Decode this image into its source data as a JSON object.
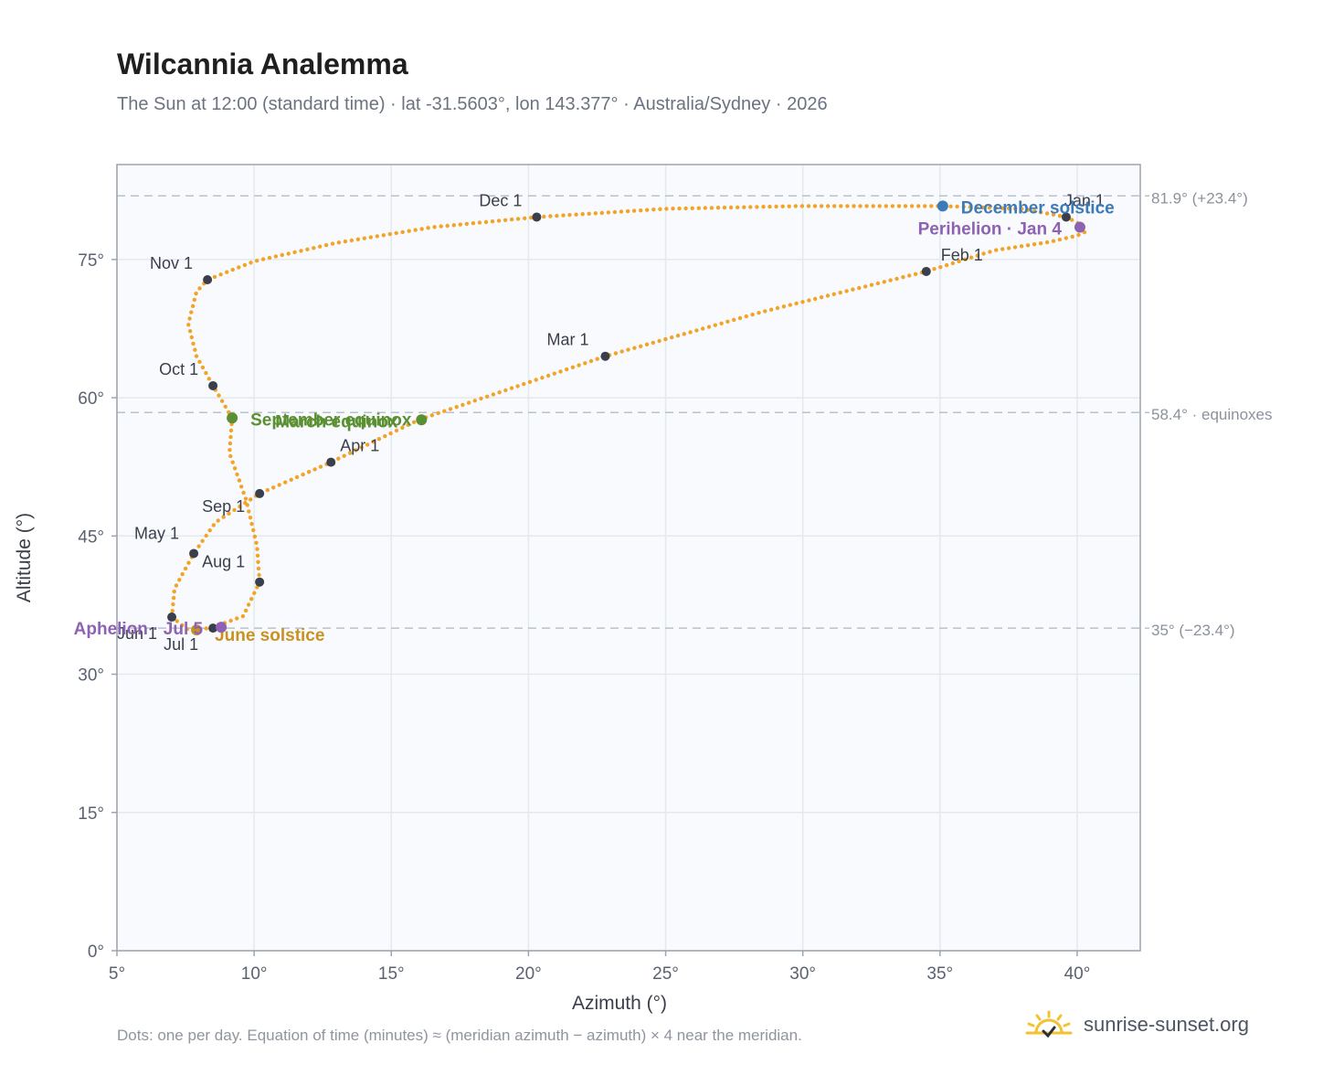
{
  "header": {
    "title": "Wilcannia Analemma",
    "subtitle": "The Sun at 12:00 (standard time) · lat -31.5603°, lon 143.377° · Australia/Sydney · 2026"
  },
  "footer": {
    "note": "Dots: one per day. Equation of time (minutes) ≈ (meridian azimuth − azimuth) × 4 near the meridian.",
    "brand": "sunrise-sunset.org"
  },
  "colors": {
    "path": "#f2a427",
    "month": "#3a3f4b",
    "equinox": "#5b9032",
    "december": "#3d7ab8",
    "june": "#c99220",
    "apsis": "#8e62b3",
    "grid": "#e4e9ef",
    "plot_bg": "#f8fafd",
    "ref_line": "#b8c2cc"
  },
  "chart_data": {
    "type": "scatter",
    "xlabel": "Azimuth (°)",
    "ylabel": "Altitude (°)",
    "xlim": [
      5,
      42.3
    ],
    "ylim": [
      0,
      85.3
    ],
    "x_ticks": [
      5,
      10,
      15,
      20,
      25,
      30,
      35,
      40
    ],
    "x_tick_labels": [
      "5°",
      "10°",
      "15°",
      "20°",
      "25°",
      "30°",
      "35°",
      "40°"
    ],
    "y_ticks": [
      0,
      15,
      30,
      45,
      60,
      75
    ],
    "y_tick_labels": [
      "0°",
      "15°",
      "30°",
      "45°",
      "60°",
      "75°"
    ],
    "grid": true,
    "reference_lines": [
      {
        "altitude": 81.9,
        "label": "81.9° (+23.4°)"
      },
      {
        "altitude": 58.4,
        "label": "58.4° · equinoxes"
      },
      {
        "altitude": 35.0,
        "label": "35° (−23.4°)"
      }
    ],
    "path_keypoints": [
      [
        39.6,
        79.6
      ],
      [
        40.0,
        79.0
      ],
      [
        40.2,
        78.5
      ],
      [
        40.3,
        78.0
      ],
      [
        40.0,
        77.6
      ],
      [
        39.0,
        76.9
      ],
      [
        37.0,
        76.0
      ],
      [
        34.5,
        73.7
      ],
      [
        28.5,
        69.3
      ],
      [
        22.8,
        64.5
      ],
      [
        16.0,
        57.6
      ],
      [
        12.8,
        53.0
      ],
      [
        10.2,
        49.6
      ],
      [
        8.6,
        46.5
      ],
      [
        7.8,
        43.1
      ],
      [
        7.1,
        39.3
      ],
      [
        7.0,
        36.2
      ],
      [
        7.6,
        34.8
      ],
      [
        8.4,
        35.0
      ],
      [
        9.6,
        36.3
      ],
      [
        10.2,
        40.0
      ],
      [
        10.1,
        44.0
      ],
      [
        9.7,
        49.0
      ],
      [
        9.1,
        54.0
      ],
      [
        9.2,
        57.8
      ],
      [
        8.5,
        61.3
      ],
      [
        7.9,
        64.5
      ],
      [
        7.6,
        68.0
      ],
      [
        7.9,
        71.5
      ],
      [
        8.3,
        72.8
      ],
      [
        10.0,
        74.8
      ],
      [
        13.0,
        76.8
      ],
      [
        16.5,
        78.5
      ],
      [
        20.3,
        79.6
      ],
      [
        25.0,
        80.5
      ],
      [
        30.0,
        80.8
      ],
      [
        35.0,
        80.8
      ],
      [
        38.0,
        80.5
      ],
      [
        39.6,
        79.6
      ]
    ],
    "month_markers": [
      {
        "label": "Jan 1",
        "x": 39.6,
        "y": 79.6
      },
      {
        "label": "Feb 1",
        "x": 34.5,
        "y": 73.7
      },
      {
        "label": "Mar 1",
        "x": 22.8,
        "y": 64.5
      },
      {
        "label": "Apr 1",
        "x": 12.8,
        "y": 53.0
      },
      {
        "label": "May 1",
        "x": 7.8,
        "y": 43.1
      },
      {
        "label": "Jun 1",
        "x": 7.0,
        "y": 36.2
      },
      {
        "label": "Jul 1",
        "x": 8.5,
        "y": 35.0
      },
      {
        "label": "Aug 1",
        "x": 10.2,
        "y": 40.0
      },
      {
        "label": "Sep 1",
        "x": 10.2,
        "y": 49.6
      },
      {
        "label": "Oct 1",
        "x": 8.5,
        "y": 61.3
      },
      {
        "label": "Nov 1",
        "x": 8.3,
        "y": 72.8
      },
      {
        "label": "Dec 1",
        "x": 20.3,
        "y": 79.6
      }
    ],
    "events": [
      {
        "label": "December solstice",
        "x": 35.1,
        "y": 80.8,
        "kind": "december"
      },
      {
        "label": "Perihelion · Jan 4",
        "x": 40.1,
        "y": 78.5,
        "kind": "apsis"
      },
      {
        "label": "March equinox",
        "x": 16.1,
        "y": 57.6,
        "kind": "equinox"
      },
      {
        "label": "September equinox",
        "x": 9.2,
        "y": 57.8,
        "kind": "equinox"
      },
      {
        "label": "June solstice",
        "x": 7.9,
        "y": 34.8,
        "kind": "june"
      },
      {
        "label": "Aphelion · Jul 5",
        "x": 8.8,
        "y": 35.1,
        "kind": "apsis"
      }
    ]
  }
}
